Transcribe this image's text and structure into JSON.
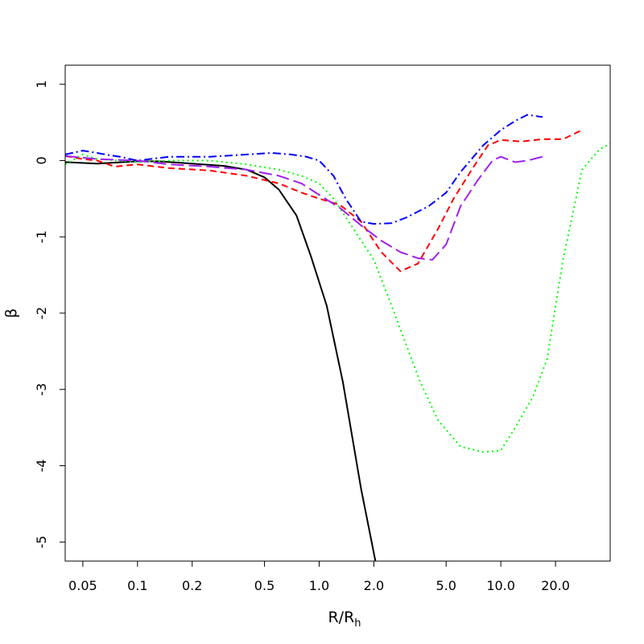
{
  "chart_data": {
    "type": "line",
    "title": "",
    "xlabel": "R/R",
    "xlabel_sub": "h",
    "ylabel": "β",
    "xscale": "log",
    "xlim": [
      0.04,
      40
    ],
    "ylim": [
      -5.25,
      1.25
    ],
    "x_ticks": [
      {
        "value": 0.05,
        "label": "0.05"
      },
      {
        "value": 0.1,
        "label": "0.1"
      },
      {
        "value": 0.2,
        "label": "0.2"
      },
      {
        "value": 0.5,
        "label": "0.5"
      },
      {
        "value": 1.0,
        "label": "1.0"
      },
      {
        "value": 2.0,
        "label": "2.0"
      },
      {
        "value": 5.0,
        "label": "5.0"
      },
      {
        "value": 10.0,
        "label": "10.0"
      },
      {
        "value": 20.0,
        "label": "20.0"
      }
    ],
    "y_ticks": [
      {
        "value": 1,
        "label": "1"
      },
      {
        "value": 0,
        "label": "0"
      },
      {
        "value": -1,
        "label": "-1"
      },
      {
        "value": -2,
        "label": "-2"
      },
      {
        "value": -3,
        "label": "-3"
      },
      {
        "value": -4,
        "label": "-4"
      },
      {
        "value": -5,
        "label": "-5"
      }
    ],
    "grid": false,
    "legend": "none",
    "series": [
      {
        "color": "#000000",
        "dash": "solid",
        "points": [
          [
            0.04,
            -0.02
          ],
          [
            0.06,
            -0.04
          ],
          [
            0.1,
            -0.01
          ],
          [
            0.13,
            -0.01
          ],
          [
            0.2,
            -0.04
          ],
          [
            0.3,
            -0.07
          ],
          [
            0.4,
            -0.12
          ],
          [
            0.5,
            -0.22
          ],
          [
            0.6,
            -0.38
          ],
          [
            0.75,
            -0.72
          ],
          [
            0.9,
            -1.25
          ],
          [
            1.1,
            -1.9
          ],
          [
            1.35,
            -2.9
          ],
          [
            1.7,
            -4.3
          ],
          [
            2.1,
            -5.4
          ]
        ]
      },
      {
        "color": "#ff0000",
        "dash": "dashed",
        "points": [
          [
            0.04,
            0.06
          ],
          [
            0.05,
            0.02
          ],
          [
            0.06,
            0.0
          ],
          [
            0.075,
            -0.08
          ],
          [
            0.1,
            -0.05
          ],
          [
            0.15,
            -0.1
          ],
          [
            0.25,
            -0.13
          ],
          [
            0.4,
            -0.2
          ],
          [
            0.6,
            -0.3
          ],
          [
            0.8,
            -0.42
          ],
          [
            1.0,
            -0.5
          ],
          [
            1.3,
            -0.58
          ],
          [
            1.7,
            -0.8
          ],
          [
            2.2,
            -1.2
          ],
          [
            2.8,
            -1.45
          ],
          [
            3.5,
            -1.35
          ],
          [
            4.5,
            -0.9
          ],
          [
            5.5,
            -0.5
          ],
          [
            7.0,
            -0.1
          ],
          [
            8.5,
            0.2
          ],
          [
            10.0,
            0.27
          ],
          [
            13.0,
            0.25
          ],
          [
            17.0,
            0.28
          ],
          [
            22.0,
            0.28
          ],
          [
            28.0,
            0.4
          ]
        ]
      },
      {
        "color": "#0000ff",
        "dash": "dashdot",
        "points": [
          [
            0.04,
            0.08
          ],
          [
            0.05,
            0.13
          ],
          [
            0.06,
            0.1
          ],
          [
            0.07,
            0.07
          ],
          [
            0.08,
            0.05
          ],
          [
            0.1,
            0.0
          ],
          [
            0.15,
            0.05
          ],
          [
            0.25,
            0.05
          ],
          [
            0.4,
            0.08
          ],
          [
            0.55,
            0.1
          ],
          [
            0.7,
            0.08
          ],
          [
            0.85,
            0.05
          ],
          [
            1.0,
            0.0
          ],
          [
            1.2,
            -0.2
          ],
          [
            1.4,
            -0.5
          ],
          [
            1.7,
            -0.8
          ],
          [
            2.0,
            -0.83
          ],
          [
            2.5,
            -0.82
          ],
          [
            3.0,
            -0.75
          ],
          [
            4.0,
            -0.6
          ],
          [
            5.0,
            -0.42
          ],
          [
            6.0,
            -0.15
          ],
          [
            8.0,
            0.2
          ],
          [
            10.0,
            0.4
          ],
          [
            12.0,
            0.52
          ],
          [
            14.0,
            0.6
          ],
          [
            17.0,
            0.57
          ]
        ]
      },
      {
        "color": "#00ff00",
        "dash": "dotted",
        "points": [
          [
            0.04,
            -0.05
          ],
          [
            0.05,
            0.08
          ],
          [
            0.06,
            0.02
          ],
          [
            0.08,
            0.0
          ],
          [
            0.1,
            -0.02
          ],
          [
            0.15,
            0.0
          ],
          [
            0.25,
            0.0
          ],
          [
            0.4,
            -0.05
          ],
          [
            0.6,
            -0.12
          ],
          [
            0.8,
            -0.2
          ],
          [
            1.0,
            -0.3
          ],
          [
            1.2,
            -0.5
          ],
          [
            1.5,
            -0.85
          ],
          [
            2.0,
            -1.3
          ],
          [
            2.5,
            -1.9
          ],
          [
            3.0,
            -2.4
          ],
          [
            3.6,
            -2.9
          ],
          [
            4.5,
            -3.4
          ],
          [
            6.0,
            -3.75
          ],
          [
            8.0,
            -3.82
          ],
          [
            10.0,
            -3.8
          ],
          [
            12.0,
            -3.5
          ],
          [
            15.0,
            -3.1
          ],
          [
            18.0,
            -2.6
          ],
          [
            22.0,
            -1.3
          ],
          [
            28.0,
            -0.12
          ],
          [
            35.0,
            0.15
          ],
          [
            40.0,
            0.22
          ]
        ]
      },
      {
        "color": "#a020f0",
        "dash": "longdash",
        "points": [
          [
            0.04,
            0.06
          ],
          [
            0.06,
            0.02
          ],
          [
            0.1,
            0.0
          ],
          [
            0.15,
            -0.05
          ],
          [
            0.25,
            -0.08
          ],
          [
            0.4,
            -0.12
          ],
          [
            0.6,
            -0.2
          ],
          [
            0.8,
            -0.3
          ],
          [
            1.0,
            -0.45
          ],
          [
            1.3,
            -0.62
          ],
          [
            1.7,
            -0.85
          ],
          [
            2.2,
            -1.05
          ],
          [
            2.8,
            -1.2
          ],
          [
            3.5,
            -1.28
          ],
          [
            4.2,
            -1.3
          ],
          [
            5.0,
            -1.1
          ],
          [
            6.0,
            -0.6
          ],
          [
            7.5,
            -0.25
          ],
          [
            9.0,
            0.0
          ],
          [
            10.0,
            0.05
          ],
          [
            12.0,
            -0.02
          ],
          [
            14.0,
            0.0
          ],
          [
            17.0,
            0.05
          ]
        ]
      }
    ]
  }
}
